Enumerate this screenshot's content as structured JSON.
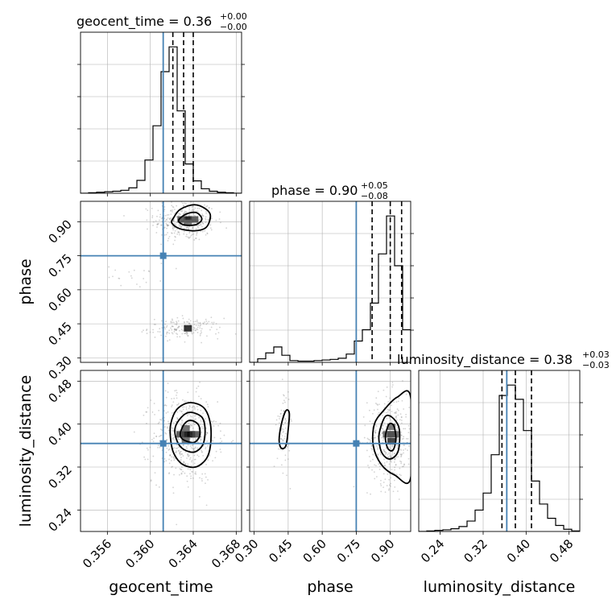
{
  "colors": {
    "truth": "#4682b4",
    "hist": "#000000",
    "grid": "#b0b0b0",
    "scatter": "#808080"
  },
  "parameters": [
    "geocent_time",
    "phase",
    "luminosity_distance"
  ],
  "titles": {
    "geocent_time": {
      "name": "geocent_time",
      "value": "0.36",
      "plus": "+0.00",
      "minus": "−0.00"
    },
    "phase": {
      "name": "phase",
      "value": "0.90",
      "plus": "+0.05",
      "minus": "−0.08"
    },
    "luminosity_distance": {
      "name": "luminosity_distance",
      "value": "0.38",
      "plus": "+0.03",
      "minus": "−0.03"
    }
  },
  "axis_labels": {
    "geocent_time": "geocent_time",
    "phase": "phase",
    "luminosity_distance": "luminosity_distance"
  },
  "chart_data": {
    "type": "corner",
    "parameters": [
      "geocent_time",
      "phase",
      "luminosity_distance"
    ],
    "ranges": {
      "geocent_time": [
        0.3535,
        0.3685
      ],
      "phase": [
        0.28,
        0.99
      ],
      "luminosity_distance": [
        0.2,
        0.5
      ]
    },
    "ticks": {
      "geocent_time": [
        0.356,
        0.36,
        0.364,
        0.368
      ],
      "phase": [
        0.3,
        0.45,
        0.6,
        0.75,
        0.9
      ],
      "luminosity_distance": [
        0.24,
        0.32,
        0.4,
        0.48
      ]
    },
    "tick_labels": {
      "geocent_time": [
        "0.356",
        "0.360",
        "0.364",
        "0.368"
      ],
      "phase": [
        "0.30",
        "0.45",
        "0.60",
        "0.75",
        "0.90"
      ],
      "luminosity_distance": [
        "0.24",
        "0.32",
        "0.40",
        "0.48"
      ]
    },
    "truths": {
      "geocent_time": 0.3612,
      "phase": 0.75,
      "luminosity_distance": 0.364
    },
    "quantiles": {
      "geocent_time": [
        0.3621,
        0.3631,
        0.364
      ],
      "phase": [
        0.82,
        0.9,
        0.95
      ],
      "luminosity_distance": [
        0.355,
        0.38,
        0.41
      ]
    },
    "histograms": {
      "geocent_time": {
        "edges": [
          0.3535,
          0.35425,
          0.355,
          0.35575,
          0.3565,
          0.35725,
          0.358,
          0.35875,
          0.3595,
          0.36025,
          0.361,
          0.36175,
          0.3625,
          0.36325,
          0.364,
          0.36475,
          0.3655,
          0.36625,
          0.367,
          0.36775,
          0.3685
        ],
        "counts": [
          0,
          1,
          2,
          3,
          4,
          6,
          11,
          26,
          67,
          136,
          245,
          295,
          166,
          59,
          25,
          9,
          4,
          2,
          1,
          0
        ]
      },
      "phase": {
        "edges": [
          0.28,
          0.3155,
          0.351,
          0.3865,
          0.422,
          0.4575,
          0.493,
          0.5285,
          0.564,
          0.5995,
          0.635,
          0.6705,
          0.706,
          0.7415,
          0.777,
          0.8125,
          0.848,
          0.8835,
          0.919,
          0.9545,
          0.99
        ],
        "counts": [
          0,
          6,
          16,
          26,
          12,
          3,
          2,
          2,
          3,
          4,
          5,
          7,
          14,
          36,
          55,
          100,
          183,
          247,
          163,
          55
        ]
      },
      "luminosity_distance": {
        "edges": [
          0.2,
          0.215,
          0.23,
          0.245,
          0.26,
          0.275,
          0.29,
          0.305,
          0.32,
          0.335,
          0.35,
          0.365,
          0.38,
          0.395,
          0.41,
          0.425,
          0.44,
          0.455,
          0.47,
          0.485,
          0.5
        ],
        "counts": [
          0,
          1,
          2,
          3,
          5,
          9,
          19,
          39,
          70,
          140,
          248,
          267,
          241,
          184,
          92,
          50,
          24,
          11,
          4,
          1
        ]
      }
    },
    "scatter_clusters": {
      "phase_vs_geocent_time": [
        {
          "center": [
            0.3632,
            0.905
          ],
          "spread": [
            0.0014,
            0.045
          ],
          "n": 360
        },
        {
          "center": [
            0.3632,
            0.43
          ],
          "spread": [
            0.0017,
            0.022
          ],
          "n": 170
        },
        {
          "center": [
            0.3585,
            0.66
          ],
          "spread": [
            0.0013,
            0.025
          ],
          "n": 20
        }
      ],
      "luminosity_distance_vs_geocent_time": [
        {
          "center": [
            0.3632,
            0.375
          ],
          "spread": [
            0.0015,
            0.042
          ],
          "n": 520
        }
      ],
      "luminosity_distance_vs_phase": [
        {
          "center": [
            0.9,
            0.372
          ],
          "spread": [
            0.05,
            0.042
          ],
          "n": 380
        },
        {
          "center": [
            0.43,
            0.395
          ],
          "spread": [
            0.014,
            0.04
          ],
          "n": 75
        }
      ]
    },
    "contours": {
      "phase_vs_geocent_time": [
        [
          [
            0.3622,
            0.92
          ],
          [
            0.3628,
            0.955
          ],
          [
            0.3641,
            0.975
          ],
          [
            0.3652,
            0.955
          ],
          [
            0.3656,
            0.925
          ],
          [
            0.3652,
            0.875
          ],
          [
            0.3641,
            0.86
          ],
          [
            0.3627,
            0.87
          ],
          [
            0.362,
            0.895
          ]
        ],
        [
          [
            0.3627,
            0.912
          ],
          [
            0.3634,
            0.935
          ],
          [
            0.3643,
            0.94
          ],
          [
            0.3648,
            0.912
          ],
          [
            0.3643,
            0.888
          ],
          [
            0.3633,
            0.885
          ],
          [
            0.3627,
            0.897
          ]
        ]
      ],
      "luminosity_distance_vs_geocent_time": [
        [
          [
            0.3619,
            0.4
          ],
          [
            0.3625,
            0.428
          ],
          [
            0.3637,
            0.44
          ],
          [
            0.365,
            0.43
          ],
          [
            0.3656,
            0.4
          ],
          [
            0.3656,
            0.36
          ],
          [
            0.3652,
            0.335
          ],
          [
            0.3642,
            0.32
          ],
          [
            0.363,
            0.325
          ],
          [
            0.3622,
            0.345
          ],
          [
            0.3619,
            0.37
          ]
        ],
        [
          [
            0.3623,
            0.392
          ],
          [
            0.3629,
            0.413
          ],
          [
            0.3637,
            0.422
          ],
          [
            0.3648,
            0.413
          ],
          [
            0.3651,
            0.39
          ],
          [
            0.3649,
            0.362
          ],
          [
            0.3641,
            0.348
          ],
          [
            0.3631,
            0.353
          ],
          [
            0.3625,
            0.368
          ]
        ],
        [
          [
            0.3628,
            0.384
          ],
          [
            0.3632,
            0.401
          ],
          [
            0.3638,
            0.407
          ],
          [
            0.3645,
            0.398
          ],
          [
            0.3646,
            0.378
          ],
          [
            0.3641,
            0.366
          ],
          [
            0.3634,
            0.368
          ],
          [
            0.3629,
            0.374
          ]
        ]
      ],
      "luminosity_distance_vs_phase": [
        [
          [
            0.83,
            0.4
          ],
          [
            0.87,
            0.425
          ],
          [
            0.93,
            0.45
          ],
          [
            0.99,
            0.45
          ],
          [
            0.99,
            0.3
          ],
          [
            0.92,
            0.305
          ],
          [
            0.86,
            0.325
          ],
          [
            0.825,
            0.36
          ]
        ],
        [
          [
            0.855,
            0.39
          ],
          [
            0.88,
            0.415
          ],
          [
            0.915,
            0.41
          ],
          [
            0.94,
            0.39
          ],
          [
            0.935,
            0.35
          ],
          [
            0.9,
            0.335
          ],
          [
            0.865,
            0.345
          ],
          [
            0.85,
            0.37
          ]
        ],
        [
          [
            0.88,
            0.382
          ],
          [
            0.895,
            0.4
          ],
          [
            0.915,
            0.397
          ],
          [
            0.925,
            0.373
          ],
          [
            0.913,
            0.352
          ],
          [
            0.892,
            0.353
          ],
          [
            0.88,
            0.368
          ]
        ],
        [
          [
            0.41,
            0.37
          ],
          [
            0.42,
            0.4
          ],
          [
            0.44,
            0.425
          ],
          [
            0.455,
            0.42
          ],
          [
            0.45,
            0.39
          ],
          [
            0.44,
            0.36
          ],
          [
            0.42,
            0.355
          ]
        ]
      ]
    },
    "density_peaks": {
      "phase_vs_geocent_time": [
        {
          "center": [
            0.3635,
            0.91
          ],
          "grey": 0.0
        },
        {
          "center": [
            0.3629,
            0.91
          ],
          "grey": 0.35
        },
        {
          "center": [
            0.3641,
            0.91
          ],
          "grey": 0.35
        },
        {
          "center": [
            0.3635,
            0.895
          ],
          "grey": 0.5
        },
        {
          "center": [
            0.3635,
            0.43
          ],
          "grey": 0.1
        }
      ],
      "luminosity_distance_vs_geocent_time": [
        {
          "center": [
            0.3633,
            0.381
          ],
          "grey": 0.0
        },
        {
          "center": [
            0.3638,
            0.381
          ],
          "grey": 0.05
        },
        {
          "center": [
            0.3628,
            0.381
          ],
          "grey": 0.35
        },
        {
          "center": [
            0.3633,
            0.392
          ],
          "grey": 0.45
        },
        {
          "center": [
            0.3633,
            0.37
          ],
          "grey": 0.45
        },
        {
          "center": [
            0.3643,
            0.381
          ],
          "grey": 0.35
        }
      ],
      "luminosity_distance_vs_phase": [
        {
          "center": [
            0.905,
            0.381
          ],
          "grey": 0.0
        },
        {
          "center": [
            0.905,
            0.368
          ],
          "grey": 0.2
        },
        {
          "center": [
            0.885,
            0.381
          ],
          "grey": 0.45
        },
        {
          "center": [
            0.92,
            0.381
          ],
          "grey": 0.45
        },
        {
          "center": [
            0.905,
            0.395
          ],
          "grey": 0.5
        }
      ]
    }
  }
}
